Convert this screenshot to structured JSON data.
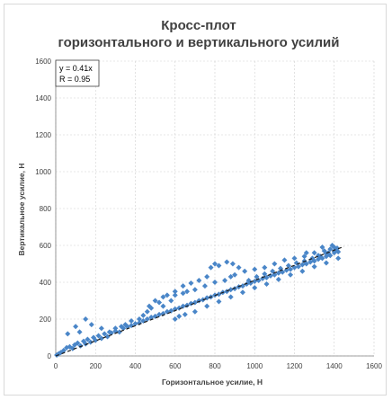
{
  "chart_data": {
    "type": "scatter",
    "title_lines": [
      "Кросс-плот",
      "горизонтального и вертикального усилий"
    ],
    "xlabel": "Горизонтальное усилие, Н",
    "ylabel": "Вертикальное усилие, Н",
    "xlim": [
      0,
      1600
    ],
    "ylim": [
      0,
      1600
    ],
    "xticks": [
      0,
      200,
      400,
      600,
      800,
      1000,
      1200,
      1400,
      1600
    ],
    "yticks": [
      0,
      200,
      400,
      600,
      800,
      1000,
      1200,
      1400,
      1600
    ],
    "grid": true,
    "annotation": [
      "y = 0.41x",
      "R = 0.95"
    ],
    "trendline": {
      "slope": 0.41,
      "x_range": [
        0,
        1450
      ],
      "style": "dashed",
      "color": "#1a1a1a"
    },
    "marker_color": "#4a86c8",
    "points": [
      [
        5,
        5
      ],
      [
        15,
        12
      ],
      [
        25,
        18
      ],
      [
        40,
        30
      ],
      [
        55,
        45
      ],
      [
        70,
        50
      ],
      [
        85,
        40
      ],
      [
        95,
        60
      ],
      [
        110,
        70
      ],
      [
        125,
        55
      ],
      [
        140,
        80
      ],
      [
        150,
        65
      ],
      [
        160,
        90
      ],
      [
        175,
        75
      ],
      [
        190,
        100
      ],
      [
        200,
        85
      ],
      [
        215,
        110
      ],
      [
        230,
        95
      ],
      [
        245,
        120
      ],
      [
        260,
        105
      ],
      [
        280,
        125
      ],
      [
        300,
        135
      ],
      [
        320,
        130
      ],
      [
        340,
        150
      ],
      [
        360,
        160
      ],
      [
        380,
        165
      ],
      [
        400,
        175
      ],
      [
        420,
        180
      ],
      [
        440,
        190
      ],
      [
        460,
        200
      ],
      [
        480,
        210
      ],
      [
        500,
        215
      ],
      [
        520,
        225
      ],
      [
        540,
        230
      ],
      [
        560,
        240
      ],
      [
        580,
        245
      ],
      [
        600,
        255
      ],
      [
        620,
        260
      ],
      [
        640,
        270
      ],
      [
        660,
        275
      ],
      [
        680,
        285
      ],
      [
        700,
        290
      ],
      [
        720,
        300
      ],
      [
        740,
        305
      ],
      [
        760,
        315
      ],
      [
        780,
        320
      ],
      [
        800,
        330
      ],
      [
        820,
        335
      ],
      [
        840,
        345
      ],
      [
        860,
        350
      ],
      [
        880,
        360
      ],
      [
        900,
        365
      ],
      [
        920,
        375
      ],
      [
        940,
        380
      ],
      [
        960,
        390
      ],
      [
        980,
        395
      ],
      [
        1000,
        405
      ],
      [
        1020,
        410
      ],
      [
        1040,
        420
      ],
      [
        1060,
        425
      ],
      [
        1080,
        435
      ],
      [
        1100,
        440
      ],
      [
        1120,
        450
      ],
      [
        1140,
        455
      ],
      [
        1160,
        465
      ],
      [
        1180,
        470
      ],
      [
        1200,
        480
      ],
      [
        1220,
        485
      ],
      [
        1240,
        495
      ],
      [
        1260,
        500
      ],
      [
        1280,
        510
      ],
      [
        1300,
        515
      ],
      [
        1320,
        525
      ],
      [
        1340,
        530
      ],
      [
        1360,
        540
      ],
      [
        1380,
        545
      ],
      [
        1400,
        560
      ],
      [
        1420,
        565
      ],
      [
        150,
        200
      ],
      [
        100,
        160
      ],
      [
        180,
        170
      ],
      [
        230,
        150
      ],
      [
        60,
        120
      ],
      [
        120,
        130
      ],
      [
        500,
        300
      ],
      [
        520,
        290
      ],
      [
        540,
        320
      ],
      [
        470,
        270
      ],
      [
        480,
        260
      ],
      [
        600,
        330
      ],
      [
        640,
        340
      ],
      [
        660,
        350
      ],
      [
        700,
        360
      ],
      [
        750,
        380
      ],
      [
        800,
        400
      ],
      [
        850,
        410
      ],
      [
        880,
        430
      ],
      [
        900,
        440
      ],
      [
        950,
        460
      ],
      [
        1000,
        470
      ],
      [
        1050,
        480
      ],
      [
        1100,
        500
      ],
      [
        1150,
        520
      ],
      [
        1200,
        530
      ],
      [
        1250,
        540
      ],
      [
        1300,
        560
      ],
      [
        1350,
        570
      ],
      [
        1380,
        580
      ],
      [
        1400,
        590
      ],
      [
        1410,
        575
      ],
      [
        1360,
        555
      ],
      [
        1320,
        545
      ],
      [
        600,
        200
      ],
      [
        620,
        215
      ],
      [
        650,
        225
      ],
      [
        700,
        240
      ],
      [
        760,
        270
      ],
      [
        820,
        295
      ],
      [
        880,
        320
      ],
      [
        940,
        345
      ],
      [
        1000,
        370
      ],
      [
        1060,
        390
      ],
      [
        1120,
        415
      ],
      [
        1180,
        440
      ],
      [
        1240,
        460
      ],
      [
        1300,
        485
      ],
      [
        1360,
        505
      ],
      [
        1420,
        530
      ],
      [
        780,
        480
      ],
      [
        820,
        490
      ],
      [
        800,
        500
      ],
      [
        860,
        510
      ],
      [
        920,
        480
      ],
      [
        890,
        500
      ],
      [
        640,
        380
      ],
      [
        680,
        395
      ],
      [
        720,
        410
      ],
      [
        760,
        430
      ],
      [
        560,
        330
      ],
      [
        600,
        350
      ],
      [
        580,
        300
      ],
      [
        540,
        270
      ],
      [
        440,
        220
      ],
      [
        460,
        240
      ],
      [
        420,
        200
      ],
      [
        380,
        190
      ],
      [
        350,
        170
      ],
      [
        330,
        160
      ],
      [
        300,
        150
      ],
      [
        270,
        130
      ],
      [
        970,
        410
      ],
      [
        1010,
        430
      ],
      [
        1050,
        445
      ],
      [
        1090,
        460
      ],
      [
        1130,
        475
      ],
      [
        1170,
        490
      ],
      [
        1210,
        505
      ],
      [
        1250,
        515
      ],
      [
        1290,
        530
      ],
      [
        1330,
        540
      ],
      [
        1370,
        560
      ],
      [
        1400,
        570
      ],
      [
        1415,
        585
      ],
      [
        1390,
        600
      ],
      [
        1340,
        590
      ],
      [
        1260,
        560
      ]
    ]
  }
}
